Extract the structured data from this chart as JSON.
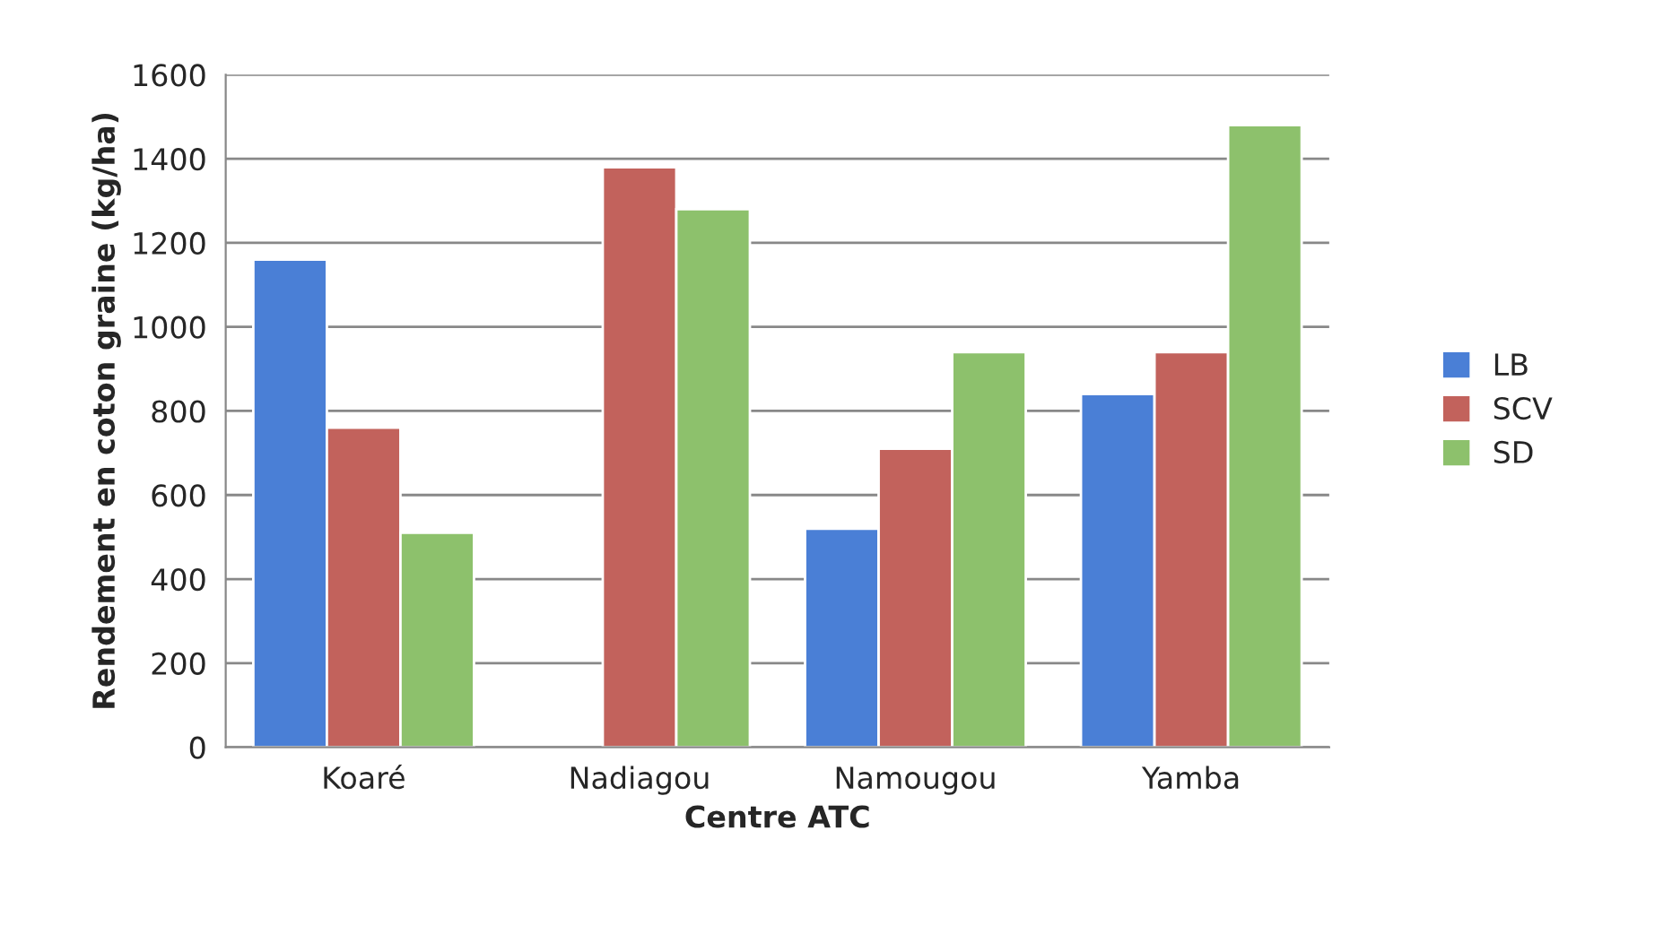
{
  "chart_data": {
    "type": "bar",
    "xlabel": "Centre ATC",
    "ylabel": "Rendement en coton graine (kg/ha)",
    "categories": [
      "Koaré",
      "Nadiagou",
      "Namougou",
      "Yamba"
    ],
    "series": [
      {
        "name": "LB",
        "color": "#4a7fd6",
        "values": [
          1160,
          null,
          520,
          840
        ]
      },
      {
        "name": "SCV",
        "color": "#c2625c",
        "values": [
          760,
          1380,
          710,
          940
        ]
      },
      {
        "name": "SD",
        "color": "#8dc16c",
        "values": [
          510,
          1280,
          940,
          1480
        ]
      }
    ],
    "ylim": [
      0,
      1600
    ],
    "yticks": [
      0,
      200,
      400,
      600,
      800,
      1000,
      1200,
      1400,
      1600
    ],
    "grid": "y",
    "legend": "right"
  }
}
